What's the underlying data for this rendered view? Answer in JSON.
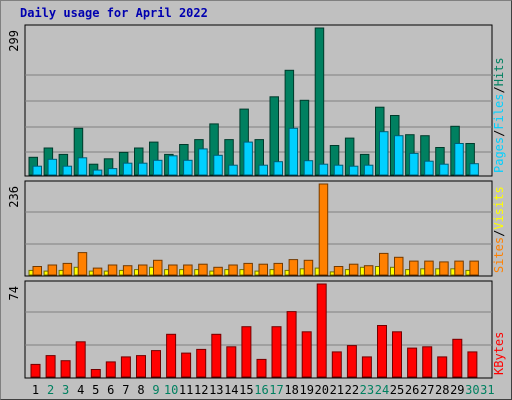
{
  "title": "Daily usage for April 2022",
  "colors": {
    "hits": "#008060",
    "files": "#00d0ff",
    "pages": "#00d0ff",
    "visits": "#ffff00",
    "sites": "#ff8000",
    "kbytes": "#ff0000",
    "title": "#0000b0",
    "weekday_label": "#000000",
    "weekend_label": "#008060"
  },
  "chart_data": [
    {
      "type": "bar",
      "name": "hits-files-pages",
      "scale_label": "299",
      "ymax": 299,
      "right_labels": [
        "Pages",
        "Files",
        "Hits"
      ],
      "categories": [
        "1",
        "2",
        "3",
        "4",
        "5",
        "6",
        "7",
        "8",
        "9",
        "10",
        "11",
        "12",
        "13",
        "14",
        "15",
        "16",
        "17",
        "18",
        "19",
        "20",
        "21",
        "22",
        "23",
        "24",
        "25",
        "26",
        "27",
        "28",
        "29",
        "30",
        "31"
      ],
      "series": [
        {
          "name": "Hits",
          "values": [
            36,
            55,
            42,
            95,
            22,
            33,
            46,
            55,
            67,
            42,
            62,
            72,
            104,
            72,
            134,
            72,
            159,
            213,
            152,
            299,
            60,
            75,
            42,
            138,
            121,
            82,
            80,
            56,
            99,
            64,
            0
          ]
        },
        {
          "name": "Files",
          "values": [
            18,
            32,
            18,
            35,
            10,
            13,
            24,
            24,
            30,
            39,
            30,
            53,
            40,
            20,
            67,
            20,
            27,
            95,
            29,
            22,
            20,
            18,
            20,
            88,
            80,
            44,
            28,
            22,
            64,
            23,
            0
          ]
        },
        {
          "name": "Pages",
          "values": [
            0,
            0,
            0,
            0,
            0,
            0,
            0,
            0,
            0,
            0,
            0,
            0,
            0,
            0,
            0,
            0,
            0,
            0,
            0,
            0,
            0,
            0,
            0,
            0,
            0,
            0,
            0,
            0,
            0,
            0,
            0
          ]
        }
      ]
    },
    {
      "type": "bar",
      "name": "visits-sites",
      "scale_label": "236",
      "ymax": 236,
      "right_labels": [
        "Sites",
        "Visits"
      ],
      "categories": [
        "1",
        "2",
        "3",
        "4",
        "5",
        "6",
        "7",
        "8",
        "9",
        "10",
        "11",
        "12",
        "13",
        "14",
        "15",
        "16",
        "17",
        "18",
        "19",
        "20",
        "21",
        "22",
        "23",
        "24",
        "25",
        "26",
        "27",
        "28",
        "29",
        "30",
        "31"
      ],
      "series": [
        {
          "name": "Visits",
          "values": [
            12,
            10,
            12,
            20,
            10,
            10,
            12,
            14,
            20,
            14,
            14,
            14,
            10,
            14,
            14,
            10,
            14,
            12,
            16,
            18,
            8,
            14,
            20,
            22,
            20,
            14,
            16,
            16,
            16,
            12,
            0
          ]
        },
        {
          "name": "Sites",
          "values": [
            22,
            26,
            30,
            58,
            18,
            26,
            24,
            26,
            38,
            26,
            26,
            28,
            20,
            26,
            30,
            28,
            30,
            40,
            38,
            236,
            22,
            28,
            24,
            56,
            46,
            36,
            36,
            34,
            36,
            36,
            0
          ]
        }
      ]
    },
    {
      "type": "bar",
      "name": "kbytes",
      "scale_label": "74",
      "ymax": 74,
      "right_labels": [
        "KBytes"
      ],
      "categories": [
        "1",
        "2",
        "3",
        "4",
        "5",
        "6",
        "7",
        "8",
        "9",
        "10",
        "11",
        "12",
        "13",
        "14",
        "15",
        "16",
        "17",
        "18",
        "19",
        "20",
        "21",
        "22",
        "23",
        "24",
        "25",
        "26",
        "27",
        "28",
        "29",
        "30",
        "31"
      ],
      "series": [
        {
          "name": "KBytes",
          "values": [
            10,
            17,
            13,
            28,
            6,
            12,
            16,
            17,
            21,
            34,
            19,
            22,
            34,
            24,
            40,
            14,
            40,
            52,
            36,
            74,
            20,
            25,
            16,
            41,
            36,
            23,
            24,
            16,
            30,
            20,
            0
          ]
        }
      ]
    }
  ],
  "days": [
    {
      "label": "1",
      "weekend": false
    },
    {
      "label": "2",
      "weekend": true
    },
    {
      "label": "3",
      "weekend": true
    },
    {
      "label": "4",
      "weekend": false
    },
    {
      "label": "5",
      "weekend": false
    },
    {
      "label": "6",
      "weekend": false
    },
    {
      "label": "7",
      "weekend": false
    },
    {
      "label": "8",
      "weekend": false
    },
    {
      "label": "9",
      "weekend": true
    },
    {
      "label": "10",
      "weekend": true
    },
    {
      "label": "11",
      "weekend": false
    },
    {
      "label": "12",
      "weekend": false
    },
    {
      "label": "13",
      "weekend": false
    },
    {
      "label": "14",
      "weekend": false
    },
    {
      "label": "15",
      "weekend": false
    },
    {
      "label": "16",
      "weekend": true
    },
    {
      "label": "17",
      "weekend": true
    },
    {
      "label": "18",
      "weekend": false
    },
    {
      "label": "19",
      "weekend": false
    },
    {
      "label": "20",
      "weekend": false
    },
    {
      "label": "21",
      "weekend": false
    },
    {
      "label": "22",
      "weekend": false
    },
    {
      "label": "23",
      "weekend": true
    },
    {
      "label": "24",
      "weekend": true
    },
    {
      "label": "25",
      "weekend": false
    },
    {
      "label": "26",
      "weekend": false
    },
    {
      "label": "27",
      "weekend": false
    },
    {
      "label": "28",
      "weekend": false
    },
    {
      "label": "29",
      "weekend": false
    },
    {
      "label": "30",
      "weekend": true
    },
    {
      "label": "31",
      "weekend": true
    }
  ]
}
